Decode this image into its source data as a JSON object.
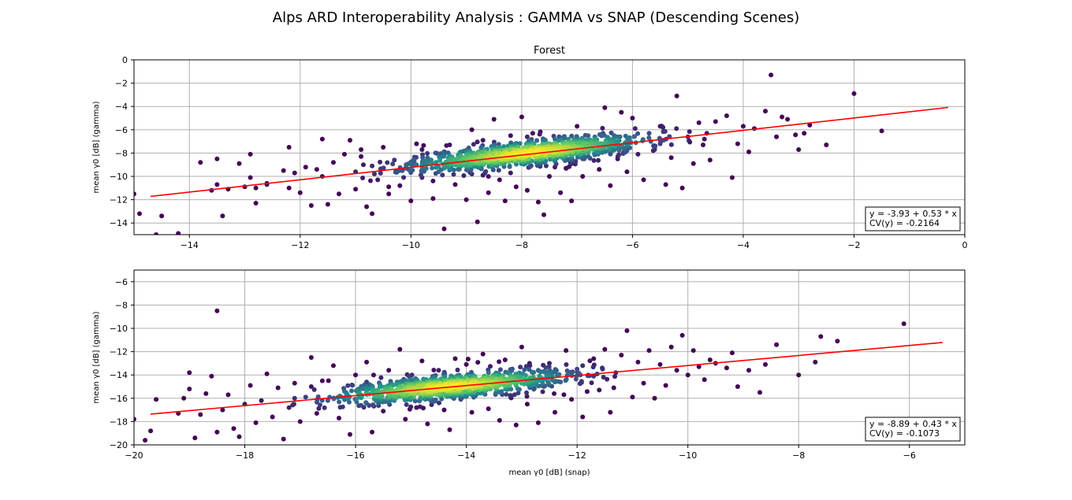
{
  "suptitle": "Alps ARD Interoperability Analysis : GAMMA vs SNAP (Descending Scenes)",
  "chart_data": [
    {
      "type": "scatter",
      "title": "Forest",
      "xlabel": "",
      "ylabel": "mean γ0 [dB] (gamma)",
      "xlim": [
        -15,
        0
      ],
      "ylim": [
        -15,
        0
      ],
      "xticks": [
        "−14",
        "−12",
        "−10",
        "−8",
        "−6",
        "−4",
        "−2",
        "0"
      ],
      "xtick_values": [
        -14,
        -12,
        -10,
        -8,
        -6,
        -4,
        -2,
        0
      ],
      "yticks": [
        "−14",
        "−12",
        "−10",
        "−8",
        "−6",
        "−4",
        "−2",
        "0"
      ],
      "ytick_values": [
        -14,
        -12,
        -10,
        -8,
        -6,
        -4,
        -2,
        0
      ],
      "grid": true,
      "fit": {
        "intercept": -3.93,
        "slope": 0.53,
        "x_range": [
          -14.7,
          -0.3
        ],
        "color": "#ff0000"
      },
      "annotation_lines": [
        "y = -3.93 + 0.53 * x",
        "CV(y) = -0.2164"
      ],
      "annotation_location": "bottom-right",
      "cluster_center": [
        -7.9,
        -8.0
      ],
      "colormap": "viridis",
      "points": [
        [
          -14.5,
          -13.4
        ],
        [
          -14.6,
          -15.0
        ],
        [
          -15.0,
          -11.5
        ],
        [
          -14.9,
          -13.2
        ],
        [
          -14.2,
          -14.9
        ],
        [
          -13.8,
          -8.8
        ],
        [
          -13.6,
          -11.2
        ],
        [
          -13.5,
          -8.5
        ],
        [
          -13.5,
          -10.7
        ],
        [
          -13.4,
          -13.4
        ],
        [
          -13.3,
          -11.1
        ],
        [
          -13.1,
          -8.9
        ],
        [
          -13.0,
          -10.9
        ],
        [
          -12.9,
          -8.1
        ],
        [
          -12.9,
          -10.1
        ],
        [
          -12.8,
          -12.3
        ],
        [
          -12.8,
          -11.0
        ],
        [
          -12.6,
          -10.7
        ],
        [
          -12.3,
          -9.5
        ],
        [
          -12.2,
          -7.5
        ],
        [
          -12.2,
          -11.0
        ],
        [
          -12.1,
          -9.7
        ],
        [
          -12.0,
          -11.4
        ],
        [
          -11.9,
          -9.2
        ],
        [
          -11.8,
          -12.5
        ],
        [
          -11.6,
          -6.8
        ],
        [
          -11.6,
          -10.0
        ],
        [
          -11.5,
          -12.4
        ],
        [
          -11.4,
          -8.8
        ],
        [
          -11.3,
          -11.5
        ],
        [
          -11.2,
          -8.1
        ],
        [
          -11.1,
          -6.9
        ],
        [
          -11.0,
          -9.6
        ],
        [
          -11.0,
          -11.1
        ],
        [
          -10.9,
          -7.7
        ],
        [
          -10.8,
          -12.6
        ],
        [
          -10.7,
          -9.1
        ],
        [
          -10.7,
          -13.2
        ],
        [
          -10.6,
          -10.3
        ],
        [
          -10.5,
          -7.5
        ],
        [
          -10.4,
          -11.5
        ],
        [
          -10.3,
          -8.6
        ],
        [
          -10.2,
          -10.8
        ],
        [
          -10.1,
          -9.3
        ],
        [
          -10.0,
          -12.1
        ],
        [
          -9.9,
          -7.2
        ],
        [
          -9.8,
          -10.1
        ],
        [
          -9.7,
          -8.4
        ],
        [
          -9.6,
          -11.9
        ],
        [
          -9.5,
          -9.6
        ],
        [
          -9.4,
          -14.5
        ],
        [
          -9.3,
          -7.3
        ],
        [
          -9.2,
          -10.7
        ],
        [
          -9.1,
          -8.9
        ],
        [
          -9.0,
          -12.0
        ],
        [
          -8.9,
          -6.0
        ],
        [
          -8.8,
          -13.9
        ],
        [
          -8.7,
          -9.9
        ],
        [
          -8.6,
          -11.4
        ],
        [
          -8.5,
          -5.1
        ],
        [
          -8.4,
          -10.3
        ],
        [
          -8.3,
          -12.1
        ],
        [
          -8.2,
          -6.5
        ],
        [
          -8.1,
          -10.9
        ],
        [
          -8.0,
          -4.9
        ],
        [
          -7.9,
          -11.2
        ],
        [
          -7.8,
          -6.3
        ],
        [
          -7.7,
          -12.2
        ],
        [
          -7.6,
          -13.3
        ],
        [
          -7.5,
          -10.0
        ],
        [
          -7.4,
          -6.8
        ],
        [
          -7.3,
          -11.4
        ],
        [
          -7.2,
          -9.3
        ],
        [
          -7.1,
          -12.1
        ],
        [
          -7.0,
          -5.7
        ],
        [
          -6.9,
          -10.0
        ],
        [
          -6.8,
          -6.5
        ],
        [
          -6.6,
          -9.4
        ],
        [
          -6.5,
          -4.1
        ],
        [
          -6.4,
          -10.8
        ],
        [
          -6.3,
          -7.0
        ],
        [
          -6.2,
          -4.5
        ],
        [
          -6.1,
          -9.6
        ],
        [
          -6.0,
          -5.0
        ],
        [
          -5.9,
          -8.1
        ],
        [
          -5.8,
          -10.3
        ],
        [
          -5.7,
          -6.3
        ],
        [
          -5.6,
          -7.7
        ],
        [
          -5.5,
          -5.7
        ],
        [
          -5.4,
          -10.7
        ],
        [
          -5.3,
          -8.4
        ],
        [
          -5.2,
          -3.1
        ],
        [
          -5.1,
          -11.0
        ],
        [
          -5.0,
          -6.6
        ],
        [
          -4.9,
          -8.9
        ],
        [
          -4.8,
          -5.4
        ],
        [
          -4.7,
          -6.8
        ],
        [
          -4.6,
          -8.6
        ],
        [
          -4.5,
          -5.3
        ],
        [
          -4.3,
          -4.8
        ],
        [
          -4.2,
          -10.1
        ],
        [
          -4.1,
          -7.2
        ],
        [
          -4.0,
          -5.7
        ],
        [
          -3.9,
          -7.9
        ],
        [
          -3.8,
          -5.9
        ],
        [
          -3.6,
          -4.4
        ],
        [
          -3.5,
          -1.3
        ],
        [
          -3.4,
          -6.6
        ],
        [
          -3.3,
          -4.9
        ],
        [
          -3.2,
          -5.1
        ],
        [
          -3.0,
          -7.7
        ],
        [
          -2.9,
          -6.3
        ],
        [
          -2.8,
          -5.6
        ],
        [
          -2.5,
          -7.3
        ],
        [
          -2.0,
          -2.9
        ],
        [
          -1.5,
          -6.1
        ],
        [
          -12.6,
          -10.6
        ],
        [
          -11.7,
          -9.4
        ],
        [
          -10.4,
          -10.9
        ],
        [
          -9.6,
          -10.4
        ],
        [
          -8.9,
          -9.8
        ],
        [
          -8.2,
          -9.7
        ],
        [
          -7.4,
          -9.2
        ],
        [
          -6.9,
          -8.5
        ],
        [
          -6.1,
          -7.8
        ],
        [
          -5.5,
          -7.2
        ],
        [
          -10.9,
          -8.3
        ],
        [
          -9.8,
          -7.7
        ],
        [
          -8.7,
          -6.9
        ],
        [
          -7.9,
          -6.6
        ]
      ]
    },
    {
      "type": "scatter",
      "title": "",
      "xlabel": "mean γ0 [dB] (snap)",
      "ylabel": "mean γ0 [dB] (gamma)",
      "xlim": [
        -20,
        -5
      ],
      "ylim": [
        -20,
        -5
      ],
      "xticks": [
        "−20",
        "−18",
        "−16",
        "−14",
        "−12",
        "−10",
        "−8",
        "−6"
      ],
      "xtick_values": [
        -20,
        -18,
        -16,
        -14,
        -12,
        -10,
        -8,
        -6
      ],
      "yticks": [
        "−20",
        "−18",
        "−16",
        "−14",
        "−12",
        "−10",
        "−8",
        "−6"
      ],
      "ytick_values": [
        -20,
        -18,
        -16,
        -14,
        -12,
        -10,
        -8,
        -6
      ],
      "grid": true,
      "fit": {
        "intercept": -8.89,
        "slope": 0.43,
        "x_range": [
          -19.7,
          -5.4
        ],
        "color": "#ff0000"
      },
      "annotation_lines": [
        "y = -8.89 + 0.43 * x",
        "CV(y) = -0.1073"
      ],
      "annotation_location": "bottom-right",
      "cluster_center": [
        -14.3,
        -15.0
      ],
      "colormap": "viridis",
      "points": [
        [
          -20.0,
          -17.8
        ],
        [
          -19.8,
          -19.6
        ],
        [
          -19.7,
          -18.8
        ],
        [
          -19.6,
          -16.1
        ],
        [
          -19.2,
          -17.3
        ],
        [
          -19.1,
          -16.0
        ],
        [
          -19.0,
          -15.2
        ],
        [
          -19.0,
          -13.8
        ],
        [
          -18.9,
          -19.4
        ],
        [
          -18.8,
          -17.4
        ],
        [
          -18.7,
          -15.6
        ],
        [
          -18.6,
          -14.1
        ],
        [
          -18.5,
          -18.9
        ],
        [
          -18.5,
          -8.5
        ],
        [
          -18.4,
          -17.0
        ],
        [
          -18.3,
          -15.7
        ],
        [
          -18.2,
          -18.6
        ],
        [
          -18.1,
          -19.3
        ],
        [
          -18.0,
          -16.5
        ],
        [
          -17.9,
          -14.9
        ],
        [
          -17.8,
          -18.1
        ],
        [
          -17.7,
          -16.2
        ],
        [
          -17.6,
          -13.9
        ],
        [
          -17.5,
          -17.6
        ],
        [
          -17.4,
          -15.1
        ],
        [
          -17.3,
          -19.5
        ],
        [
          -17.2,
          -16.8
        ],
        [
          -17.1,
          -14.7
        ],
        [
          -17.0,
          -18.0
        ],
        [
          -16.9,
          -15.9
        ],
        [
          -16.8,
          -12.5
        ],
        [
          -16.7,
          -17.3
        ],
        [
          -16.6,
          -14.5
        ],
        [
          -16.5,
          -16.2
        ],
        [
          -16.4,
          -13.2
        ],
        [
          -16.3,
          -17.7
        ],
        [
          -16.2,
          -15.4
        ],
        [
          -16.1,
          -19.1
        ],
        [
          -16.0,
          -14.0
        ],
        [
          -15.9,
          -16.6
        ],
        [
          -15.8,
          -12.9
        ],
        [
          -15.7,
          -18.9
        ],
        [
          -15.6,
          -15.5
        ],
        [
          -15.5,
          -17.1
        ],
        [
          -15.4,
          -13.6
        ],
        [
          -15.3,
          -16.2
        ],
        [
          -15.2,
          -11.8
        ],
        [
          -15.1,
          -17.8
        ],
        [
          -15.0,
          -14.4
        ],
        [
          -14.9,
          -16.8
        ],
        [
          -14.8,
          -12.8
        ],
        [
          -14.7,
          -18.2
        ],
        [
          -14.6,
          -15.6
        ],
        [
          -14.5,
          -13.6
        ],
        [
          -14.4,
          -17.0
        ],
        [
          -14.3,
          -18.7
        ],
        [
          -14.2,
          -12.6
        ],
        [
          -14.1,
          -16.1
        ],
        [
          -14.0,
          -13.1
        ],
        [
          -13.9,
          -17.2
        ],
        [
          -13.8,
          -15.3
        ],
        [
          -13.7,
          -12.2
        ],
        [
          -13.6,
          -16.9
        ],
        [
          -13.5,
          -14.0
        ],
        [
          -13.4,
          -17.9
        ],
        [
          -13.3,
          -12.7
        ],
        [
          -13.2,
          -15.9
        ],
        [
          -13.1,
          -18.3
        ],
        [
          -13.0,
          -11.6
        ],
        [
          -12.9,
          -16.5
        ],
        [
          -12.8,
          -13.8
        ],
        [
          -12.7,
          -18.1
        ],
        [
          -12.6,
          -15.0
        ],
        [
          -12.5,
          -13.0
        ],
        [
          -12.4,
          -17.2
        ],
        [
          -12.3,
          -14.6
        ],
        [
          -12.2,
          -11.9
        ],
        [
          -12.1,
          -16.1
        ],
        [
          -12.0,
          -13.5
        ],
        [
          -11.9,
          -17.6
        ],
        [
          -11.8,
          -14.0
        ],
        [
          -11.7,
          -12.6
        ],
        [
          -11.6,
          -15.3
        ],
        [
          -11.5,
          -11.8
        ],
        [
          -11.4,
          -17.2
        ],
        [
          -11.3,
          -13.8
        ],
        [
          -11.2,
          -12.3
        ],
        [
          -11.1,
          -10.2
        ],
        [
          -11.0,
          -15.9
        ],
        [
          -10.9,
          -12.9
        ],
        [
          -10.8,
          -14.7
        ],
        [
          -10.7,
          -11.9
        ],
        [
          -10.6,
          -16.0
        ],
        [
          -10.5,
          -13.1
        ],
        [
          -10.4,
          -14.9
        ],
        [
          -10.3,
          -11.6
        ],
        [
          -10.2,
          -13.6
        ],
        [
          -10.1,
          -10.6
        ],
        [
          -10.0,
          -14.0
        ],
        [
          -9.9,
          -11.9
        ],
        [
          -9.8,
          -13.3
        ],
        [
          -9.7,
          -14.4
        ],
        [
          -9.6,
          -12.7
        ],
        [
          -9.5,
          -13.0
        ],
        [
          -9.3,
          -13.4
        ],
        [
          -9.2,
          -12.1
        ],
        [
          -9.1,
          -15.0
        ],
        [
          -8.9,
          -13.6
        ],
        [
          -8.7,
          -15.5
        ],
        [
          -8.6,
          -13.1
        ],
        [
          -8.4,
          -11.4
        ],
        [
          -8.0,
          -14.0
        ],
        [
          -7.7,
          -12.9
        ],
        [
          -7.6,
          -10.7
        ],
        [
          -7.3,
          -11.1
        ],
        [
          -6.1,
          -9.6
        ],
        [
          -17.1,
          -16.0
        ],
        [
          -16.2,
          -16.1
        ],
        [
          -15.4,
          -15.9
        ],
        [
          -14.8,
          -15.5
        ],
        [
          -13.9,
          -15.0
        ],
        [
          -13.1,
          -14.9
        ],
        [
          -12.4,
          -14.6
        ],
        [
          -11.7,
          -14.1
        ],
        [
          -16.8,
          -15.0
        ],
        [
          -15.8,
          -14.6
        ],
        [
          -14.6,
          -14.1
        ],
        [
          -13.6,
          -13.8
        ],
        [
          -12.7,
          -13.6
        ],
        [
          -11.9,
          -13.2
        ]
      ]
    }
  ]
}
